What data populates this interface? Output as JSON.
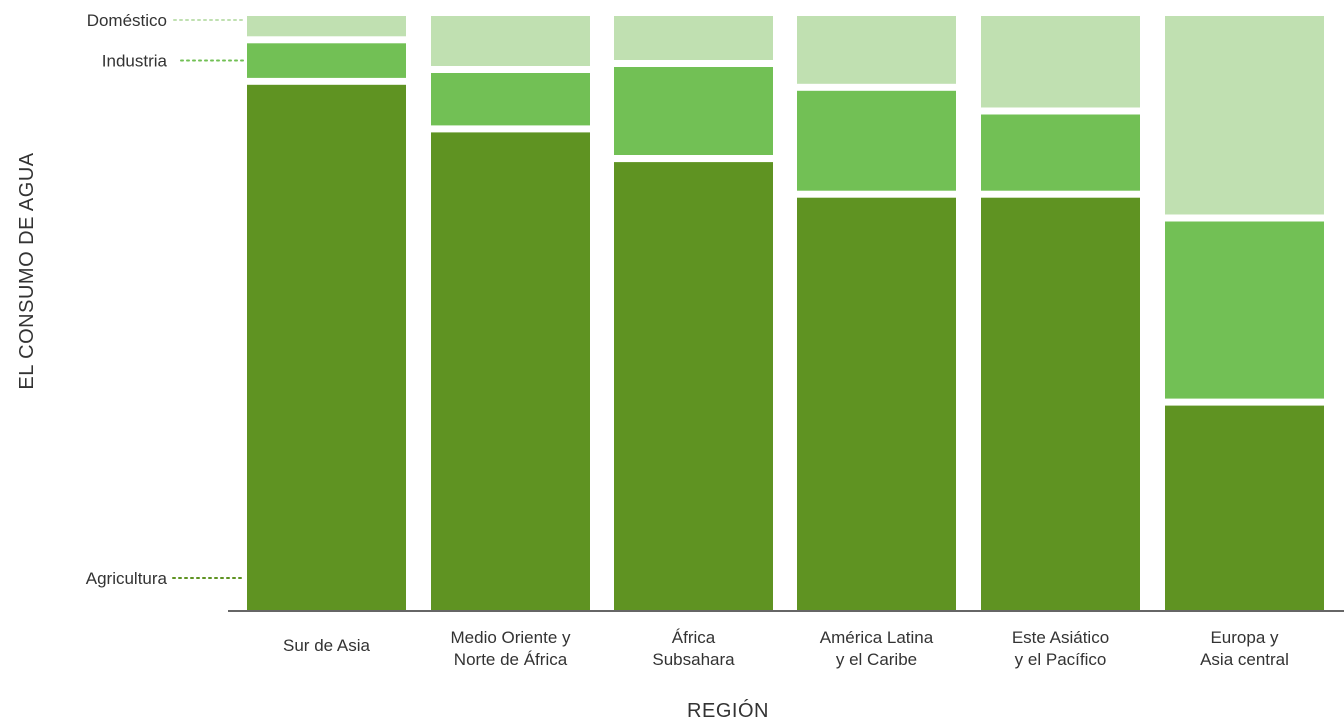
{
  "chart_data": {
    "type": "bar",
    "stacked": true,
    "normalized": true,
    "xlabel": "REGIÓN",
    "ylabel": "EL CONSUMO DE AGUA",
    "categories": [
      [
        "Sur de Asia"
      ],
      [
        "Medio Oriente y",
        "Norte de África"
      ],
      [
        "África",
        "Subsahara"
      ],
      [
        "América Latina",
        "y el Caribe"
      ],
      [
        "Este Asiático",
        "y el Pacífico"
      ],
      [
        "Europa y",
        "Asia central"
      ]
    ],
    "series": [
      {
        "name": "Agricultura",
        "values": [
          89,
          81,
          76,
          70,
          70,
          35
        ],
        "color": "#5f9322"
      },
      {
        "name": "Industria",
        "values": [
          7,
          10,
          16,
          18,
          14,
          31
        ],
        "color": "#72c055"
      },
      {
        "name": "Doméstico",
        "values": [
          4,
          9,
          8,
          12,
          16,
          34
        ],
        "color": "#c0e0b1"
      }
    ],
    "legend_position": "left, inline labels with dotted leaders",
    "grid": false
  }
}
